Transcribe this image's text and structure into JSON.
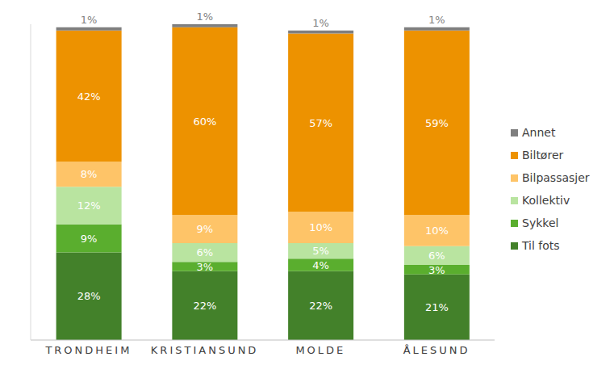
{
  "chart_data": {
    "type": "bar",
    "stacked": true,
    "data_labels": true,
    "tick_labels": "x",
    "legend": "right",
    "grid": false,
    "categories": [
      "TRONDHEIM",
      "KRISTIANSUND",
      "MOLDE",
      "ÅLESUND"
    ],
    "ylim": [
      0,
      101
    ],
    "series": [
      {
        "name": "Til fots",
        "color": "#43812a",
        "values": [
          28,
          22,
          22,
          21
        ],
        "value_labels": [
          "28%",
          "22%",
          "22%",
          "21%"
        ]
      },
      {
        "name": "Sykkel",
        "color": "#5aae2e",
        "values": [
          9,
          3,
          4,
          3
        ],
        "value_labels": [
          "9%",
          "3%",
          "4%",
          "3%"
        ]
      },
      {
        "name": "Kollektiv",
        "color": "#b9e4a0",
        "values": [
          12,
          6,
          5,
          6
        ],
        "value_labels": [
          "12%",
          "6%",
          "5%",
          "6%"
        ]
      },
      {
        "name": "Bilpassasjer",
        "color": "#fec468",
        "values": [
          8,
          9,
          10,
          10
        ],
        "value_labels": [
          "8%",
          "9%",
          "10%",
          "10%"
        ]
      },
      {
        "name": "Biltører",
        "color": "#ed9200",
        "values": [
          42,
          60,
          57,
          59
        ],
        "value_labels": [
          "42%",
          "60%",
          "57%",
          "59%"
        ]
      },
      {
        "name": "Annet",
        "color": "#7f7f7f",
        "values": [
          1,
          1,
          1,
          1
        ],
        "value_labels": [
          "1%",
          "1%",
          "1%",
          "1%"
        ]
      }
    ]
  }
}
